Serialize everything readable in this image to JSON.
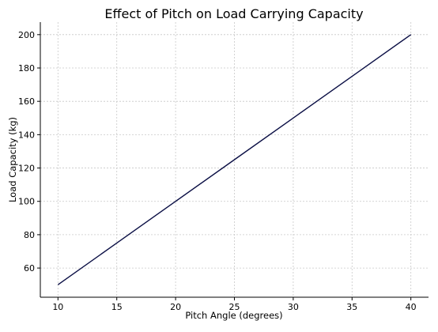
{
  "chart_data": {
    "type": "line",
    "title": "Effect of Pitch on Load Carrying Capacity",
    "xlabel": "Pitch Angle (degrees)",
    "ylabel": "Load Capacity (kg)",
    "x": [
      10,
      15,
      20,
      25,
      30,
      35,
      40
    ],
    "series": [
      {
        "values": [
          50,
          75,
          100,
          125,
          150,
          175,
          200
        ],
        "color": "#0b0f45"
      }
    ],
    "xlim": [
      8.5,
      41.5
    ],
    "ylim": [
      42.5,
      207.5
    ],
    "xticks": [
      10,
      15,
      20,
      25,
      30,
      35,
      40
    ],
    "yticks": [
      60,
      80,
      100,
      120,
      140,
      160,
      180,
      200
    ],
    "grid": true,
    "legend": "none"
  }
}
